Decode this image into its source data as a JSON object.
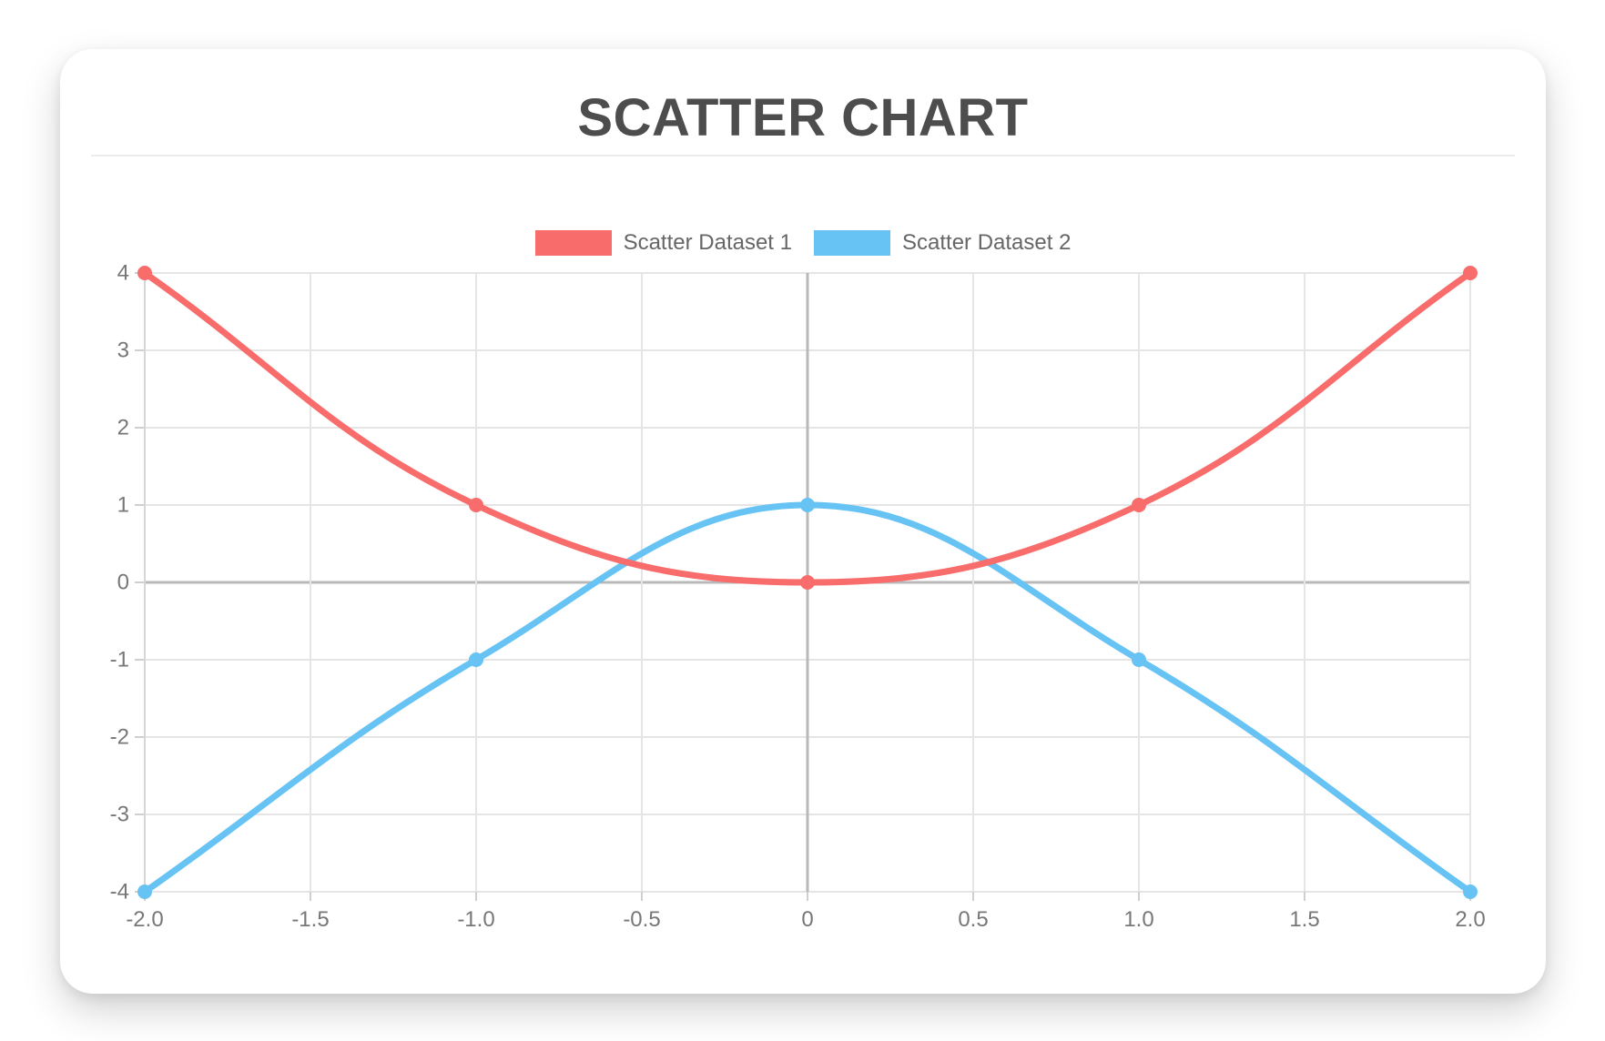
{
  "header": {
    "title": "SCATTER CHART"
  },
  "legend": {
    "items": [
      {
        "label": "Scatter Dataset 1",
        "color": "#F86C6B"
      },
      {
        "label": "Scatter Dataset 2",
        "color": "#67C3F3"
      }
    ]
  },
  "chart_data": {
    "type": "scatter",
    "title": "SCATTER CHART",
    "xlabel": "",
    "ylabel": "",
    "xlim": [
      -2,
      2
    ],
    "ylim": [
      -4,
      4
    ],
    "grid": true,
    "legend_position": "top",
    "line_tension": 0.4,
    "x_ticks": [
      {
        "value": -2,
        "label": "-2.0"
      },
      {
        "value": -1.5,
        "label": "-1.5"
      },
      {
        "value": -1,
        "label": "-1.0"
      },
      {
        "value": -0.5,
        "label": "-0.5"
      },
      {
        "value": 0,
        "label": "0"
      },
      {
        "value": 0.5,
        "label": "0.5"
      },
      {
        "value": 1,
        "label": "1.0"
      },
      {
        "value": 1.5,
        "label": "1.5"
      },
      {
        "value": 2,
        "label": "2.0"
      }
    ],
    "y_ticks": [
      {
        "value": 4,
        "label": "4"
      },
      {
        "value": 3,
        "label": "3"
      },
      {
        "value": 2,
        "label": "2"
      },
      {
        "value": 1,
        "label": "1"
      },
      {
        "value": 0,
        "label": "0"
      },
      {
        "value": -1,
        "label": "-1"
      },
      {
        "value": -2,
        "label": "-2"
      },
      {
        "value": -3,
        "label": "-3"
      },
      {
        "value": -4,
        "label": "-4"
      }
    ],
    "series": [
      {
        "name": "Scatter Dataset 1",
        "color": "#F86C6B",
        "points": [
          {
            "x": -2,
            "y": 4
          },
          {
            "x": -1,
            "y": 1
          },
          {
            "x": 0,
            "y": 0
          },
          {
            "x": 1,
            "y": 1
          },
          {
            "x": 2,
            "y": 4
          }
        ]
      },
      {
        "name": "Scatter Dataset 2",
        "color": "#67C3F3",
        "points": [
          {
            "x": -2,
            "y": -4
          },
          {
            "x": -1,
            "y": -1
          },
          {
            "x": 0,
            "y": 1
          },
          {
            "x": 1,
            "y": -1
          },
          {
            "x": 2,
            "y": -4
          }
        ]
      }
    ],
    "styles": {
      "grid_color": "#e5e5e5",
      "zero_line_color": "#b9b9b9",
      "axis_border_color": "#d6d6d6",
      "tick_mark_color": "#cfcfcf",
      "tick_label_color": "#777777",
      "title_color": "#4d4d4d",
      "legend_label_color": "#666666",
      "card_background": "#ffffff"
    }
  }
}
